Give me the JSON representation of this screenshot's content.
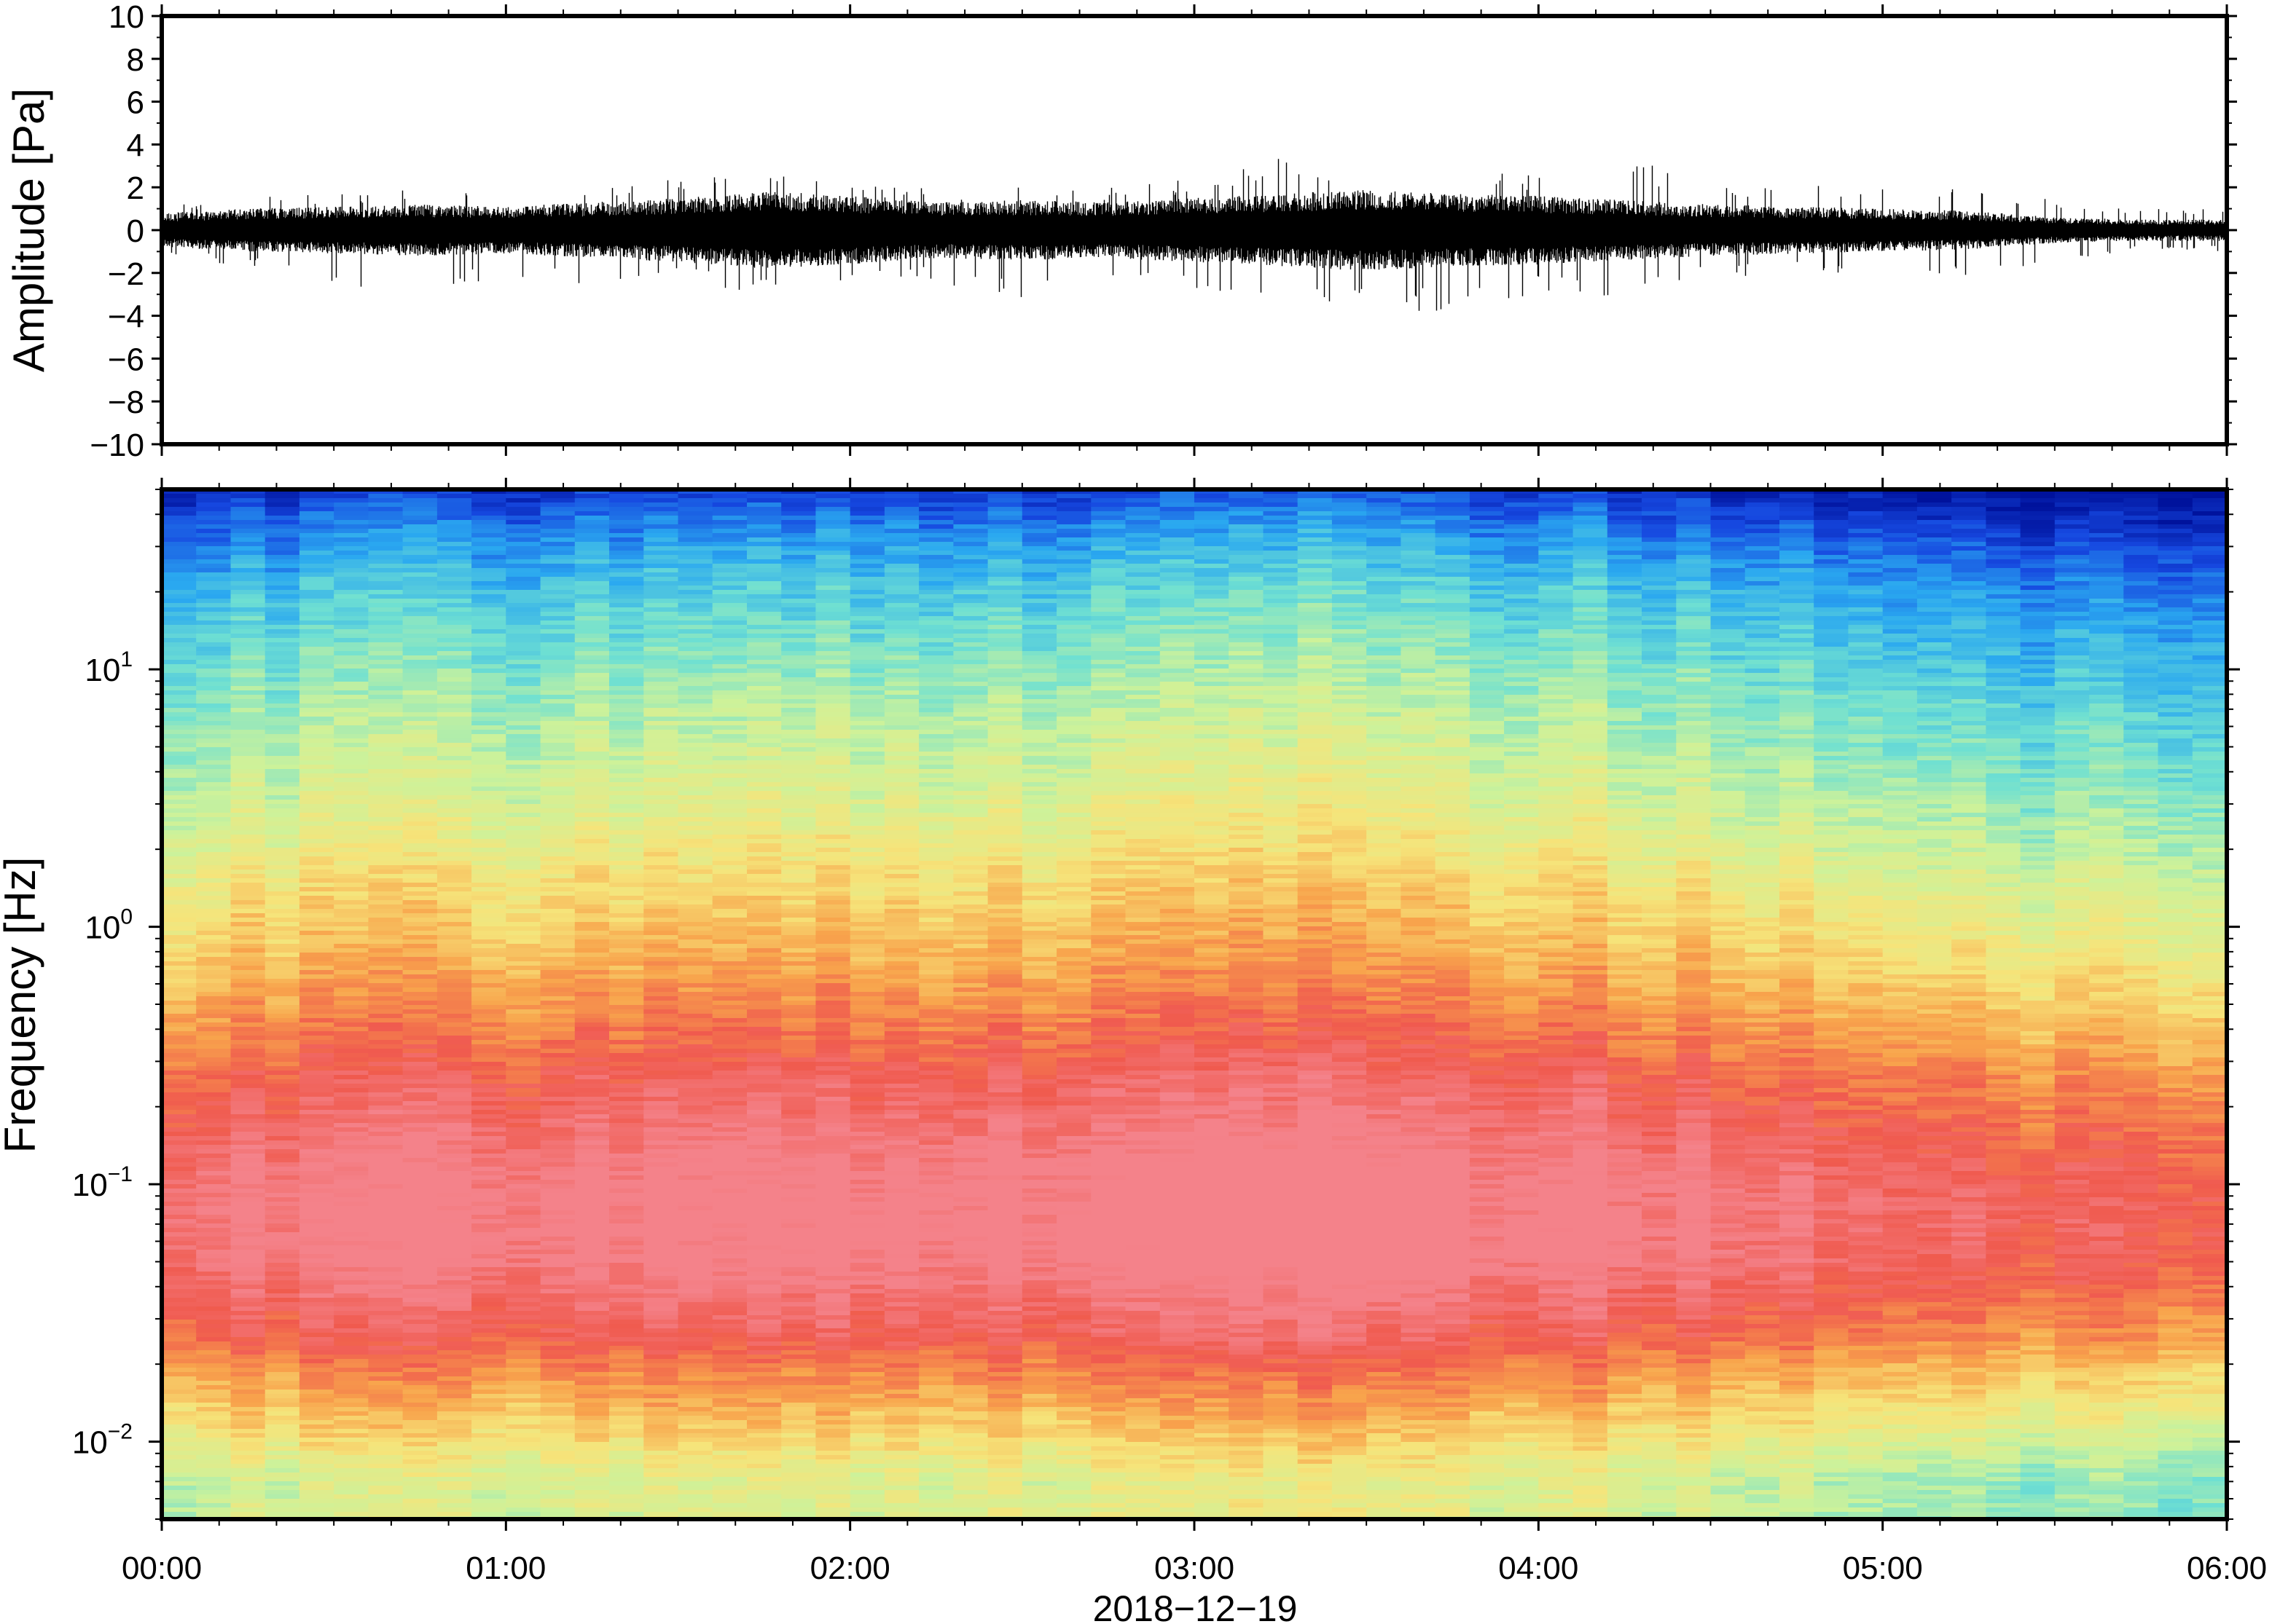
{
  "chart_data": [
    {
      "type": "line",
      "panel": "waveform",
      "ylabel": "Amplitude [Pa]",
      "ylim": [
        -10,
        10
      ],
      "yticks": [
        10,
        8,
        6,
        4,
        2,
        0,
        -2,
        -4,
        -6,
        -8,
        -10
      ],
      "ytick_labels": [
        "10",
        "8",
        "6",
        "4",
        "2",
        "0",
        "−2",
        "−4",
        "−6",
        "−8",
        "−10"
      ],
      "x_range_hours": [
        0,
        6
      ],
      "series": [
        {
          "color": "#000000",
          "hours": [
            0,
            0.25,
            0.5,
            0.75,
            1.0,
            1.25,
            1.5,
            1.75,
            2.0,
            2.25,
            2.5,
            2.75,
            3.0,
            3.25,
            3.5,
            3.75,
            4.0,
            4.25,
            4.5,
            4.75,
            5.0,
            5.25,
            5.5,
            5.75,
            6.0
          ],
          "typical_envelope_pa": [
            0.8,
            1.0,
            1.1,
            1.2,
            1.1,
            1.3,
            1.5,
            1.8,
            1.6,
            1.3,
            1.4,
            1.3,
            1.5,
            1.7,
            1.9,
            1.7,
            1.6,
            1.4,
            1.2,
            1.1,
            1.0,
            0.9,
            0.6,
            0.5,
            0.5
          ],
          "peak_positive_pa": [
            1.1,
            1.6,
            1.7,
            2.0,
            1.8,
            2.1,
            2.4,
            2.6,
            2.3,
            2.0,
            2.1,
            2.0,
            2.4,
            3.4,
            3.0,
            3.1,
            2.6,
            3.5,
            2.0,
            2.2,
            2.0,
            2.1,
            1.5,
            1.0,
            1.1
          ],
          "peak_negative_pa": [
            -1.2,
            -1.8,
            -2.6,
            -2.8,
            -2.5,
            -2.6,
            -2.5,
            -3.0,
            -2.8,
            -2.4,
            -3.3,
            -2.6,
            -2.8,
            -3.0,
            -3.6,
            -3.9,
            -3.0,
            -3.1,
            -2.3,
            -2.1,
            -2.0,
            -2.1,
            -1.5,
            -1.0,
            -1.0
          ]
        }
      ]
    },
    {
      "type": "heatmap",
      "panel": "spectrogram",
      "ylabel": "Frequency [Hz]",
      "xlabel": "2018−12−19",
      "y_scale": "log",
      "ylim_hz": [
        0.005,
        50
      ],
      "yticks_hz": [
        10,
        1,
        0.1,
        0.01
      ],
      "ytick_labels": [
        {
          "base": "10",
          "exp": "1"
        },
        {
          "base": "10",
          "exp": "0"
        },
        {
          "base": "10",
          "exp": "−1"
        },
        {
          "base": "10",
          "exp": "−2"
        }
      ],
      "xticks_hours": [
        0,
        1,
        2,
        3,
        4,
        5,
        6
      ],
      "xtick_labels": [
        "00:00",
        "01:00",
        "02:00",
        "03:00",
        "04:00",
        "05:00",
        "06:00"
      ],
      "colormap": [
        "#00129c",
        "#1648e0",
        "#2aa8f0",
        "#6fe0d2",
        "#cdf29a",
        "#f6e47a",
        "#f8a44c",
        "#f05a4e",
        "#f4828a"
      ],
      "colormap_name": "rainbow (blue = low, red/pink = high)",
      "time_bins_hours": [
        0,
        0.1,
        0.2,
        0.3,
        0.4,
        0.5,
        0.6,
        0.7,
        0.8,
        0.9,
        1.0,
        1.1,
        1.2,
        1.3,
        1.4,
        1.5,
        1.6,
        1.7,
        1.8,
        1.9,
        2.0,
        2.1,
        2.2,
        2.3,
        2.4,
        2.5,
        2.6,
        2.7,
        2.8,
        2.9,
        3.0,
        3.1,
        3.2,
        3.3,
        3.4,
        3.5,
        3.6,
        3.7,
        3.8,
        3.9,
        4.0,
        4.1,
        4.2,
        4.3,
        4.4,
        4.5,
        4.6,
        4.7,
        4.8,
        4.9,
        5.0,
        5.1,
        5.2,
        5.3,
        5.4,
        5.5,
        5.6,
        5.7,
        5.8,
        5.9
      ],
      "freq_bins_hz": [
        50,
        40,
        30,
        20,
        12,
        8,
        5,
        3,
        2,
        1.4,
        1,
        0.7,
        0.5,
        0.35,
        0.25,
        0.18,
        0.12,
        0.09,
        0.07,
        0.05,
        0.035,
        0.025,
        0.018,
        0.013,
        0.009,
        0.007
      ],
      "level_by_freq": [
        0.05,
        0.12,
        0.2,
        0.28,
        0.35,
        0.4,
        0.45,
        0.5,
        0.55,
        0.6,
        0.64,
        0.69,
        0.74,
        0.8,
        0.86,
        0.9,
        0.95,
        0.97,
        0.98,
        0.96,
        0.9,
        0.84,
        0.74,
        0.66,
        0.56,
        0.5
      ],
      "time_modulation": [
        0.0,
        0.01,
        0.02,
        0.02,
        0.03,
        0.03,
        0.04,
        0.04,
        0.03,
        0.03,
        0.02,
        0.03,
        0.04,
        0.05,
        0.05,
        0.06,
        0.07,
        0.08,
        0.07,
        0.06,
        0.05,
        0.04,
        0.05,
        0.06,
        0.06,
        0.05,
        0.05,
        0.06,
        0.07,
        0.07,
        0.08,
        0.08,
        0.09,
        0.09,
        0.08,
        0.07,
        0.06,
        0.05,
        0.05,
        0.04,
        0.05,
        0.05,
        0.04,
        0.03,
        0.02,
        0.01,
        0.0,
        -0.01,
        -0.02,
        -0.02,
        -0.03,
        -0.04,
        -0.05,
        -0.06,
        -0.07,
        -0.08,
        -0.08,
        -0.09,
        -0.09,
        -0.1
      ]
    }
  ]
}
